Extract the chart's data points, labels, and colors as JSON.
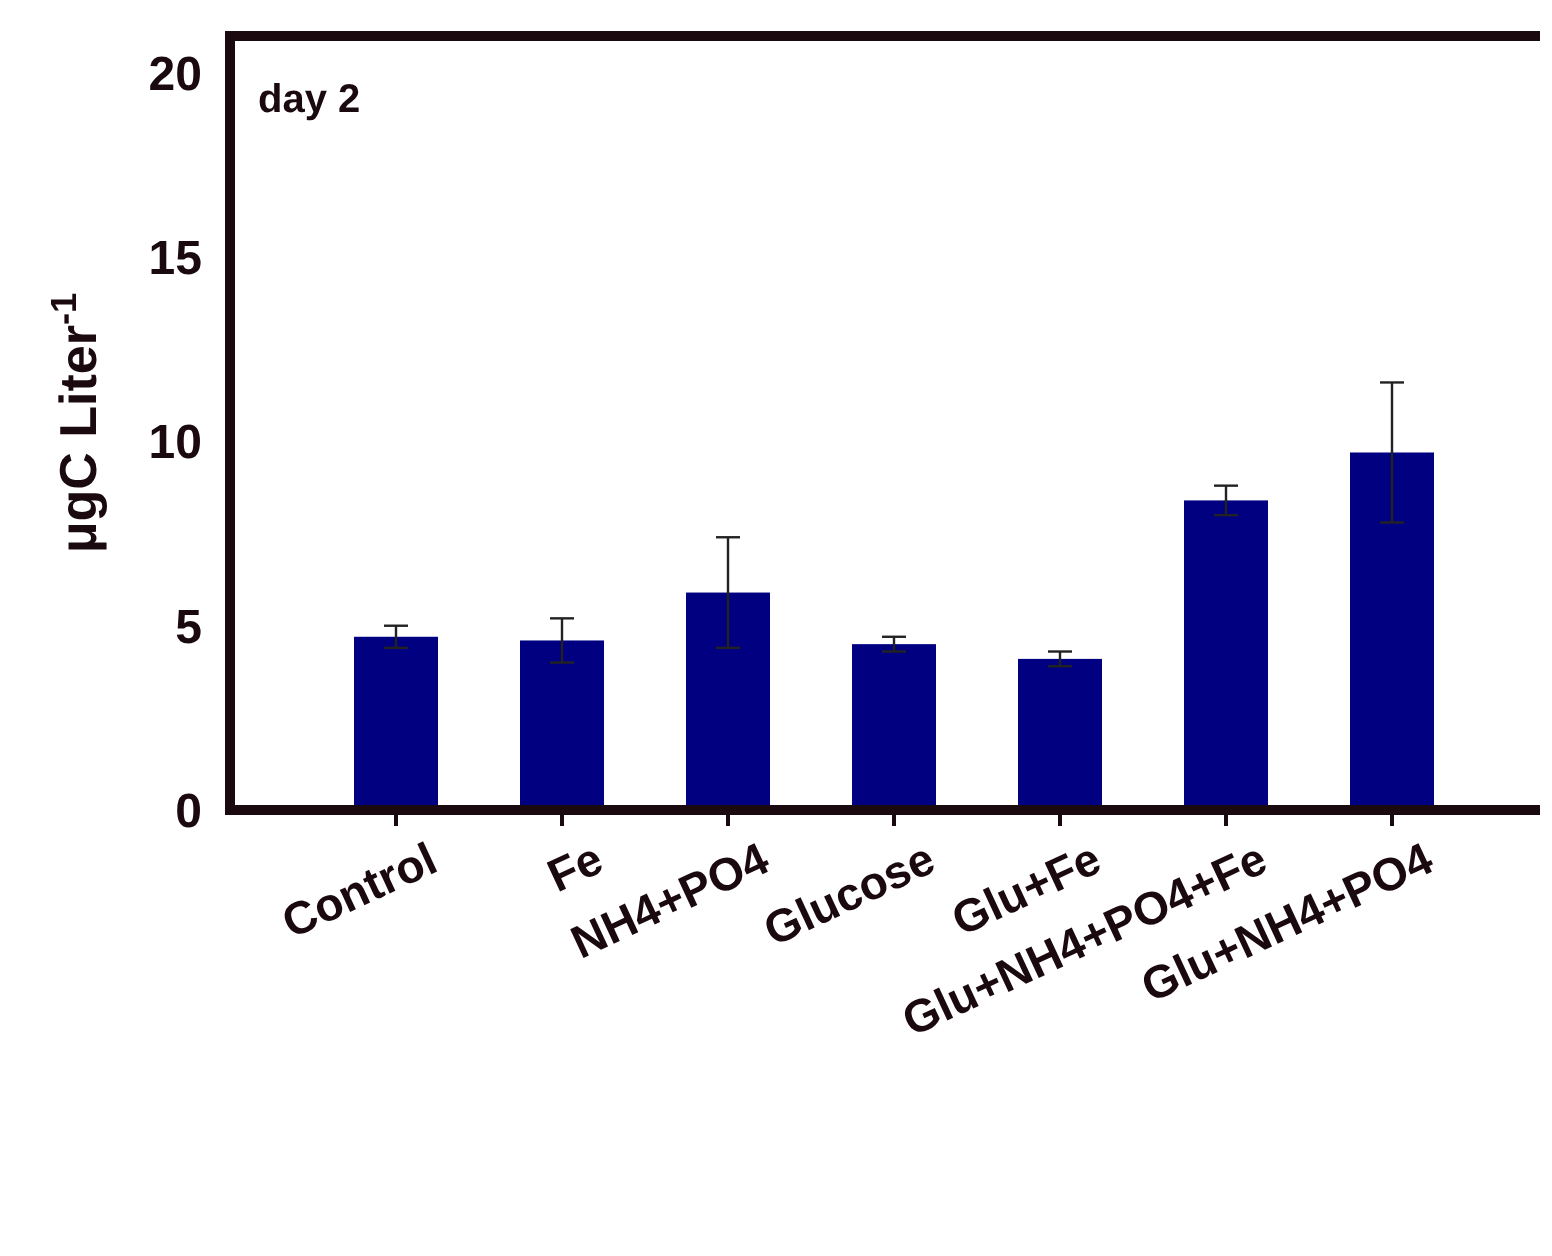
{
  "chart_data": {
    "type": "bar",
    "ylabel": "μgC Liter$^{-1}$",
    "annotations": [
      "day 2"
    ],
    "categories": [
      "Control",
      "Fe",
      "NH4+PO4",
      "Glucose",
      "Glu+Fe",
      "Glu+NH4+PO4+Fe",
      "Glu+NH4+PO4"
    ],
    "values": [
      4.7,
      4.6,
      5.9,
      4.5,
      4.1,
      8.4,
      9.7
    ],
    "errors": [
      0.3,
      0.6,
      1.5,
      0.2,
      0.2,
      0.4,
      1.9
    ],
    "color": "#000080",
    "ylim": [
      0,
      21
    ],
    "yticks": [
      0,
      5,
      10,
      15,
      20
    ],
    "grid": false
  }
}
